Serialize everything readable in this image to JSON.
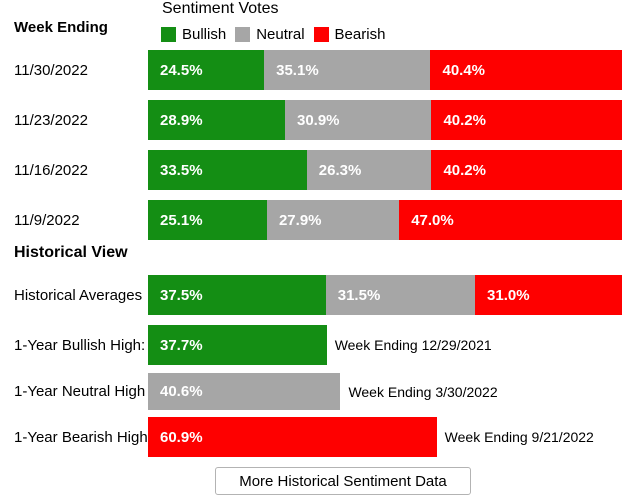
{
  "colors": {
    "bullish": "#148e14",
    "neutral": "#a6a6a6",
    "bearish": "#fe0000"
  },
  "header": {
    "title": "Sentiment Votes",
    "week_ending_label": "Week Ending",
    "legend": [
      {
        "label": "Bullish",
        "color_key": "bullish"
      },
      {
        "label": "Neutral",
        "color_key": "neutral"
      },
      {
        "label": "Bearish",
        "color_key": "bearish"
      }
    ]
  },
  "chart_data": {
    "type": "bar",
    "orientation": "horizontal",
    "stacked": true,
    "unit": "%",
    "xlim": [
      0,
      100
    ],
    "weekly": {
      "categories": [
        "11/30/2022",
        "11/23/2022",
        "11/16/2022",
        "11/9/2022"
      ],
      "series": [
        {
          "name": "Bullish",
          "color_key": "bullish",
          "values": [
            24.5,
            28.9,
            33.5,
            25.1
          ]
        },
        {
          "name": "Neutral",
          "color_key": "neutral",
          "values": [
            35.1,
            30.9,
            26.3,
            27.9
          ]
        },
        {
          "name": "Bearish",
          "color_key": "bearish",
          "values": [
            40.4,
            40.2,
            40.2,
            47.0
          ]
        }
      ]
    },
    "historical": {
      "section_title": "Historical View",
      "averages": {
        "label": "Historical Averages",
        "values": [
          {
            "name": "Bullish",
            "color_key": "bullish",
            "value": 37.5
          },
          {
            "name": "Neutral",
            "color_key": "neutral",
            "value": 31.5
          },
          {
            "name": "Bearish",
            "color_key": "bearish",
            "value": 31.0
          }
        ]
      },
      "extremes": [
        {
          "label": "1-Year Bullish High:",
          "value": 37.7,
          "color_key": "bullish",
          "annotation": "Week Ending 12/29/2021"
        },
        {
          "label": "1-Year Neutral High",
          "value": 40.6,
          "color_key": "neutral",
          "annotation": "Week Ending 3/30/2022"
        },
        {
          "label": "1-Year Bearish High",
          "value": 60.9,
          "color_key": "bearish",
          "annotation": "Week Ending 9/21/2022"
        }
      ]
    }
  },
  "footer": {
    "button_label": "More Historical Sentiment Data"
  }
}
